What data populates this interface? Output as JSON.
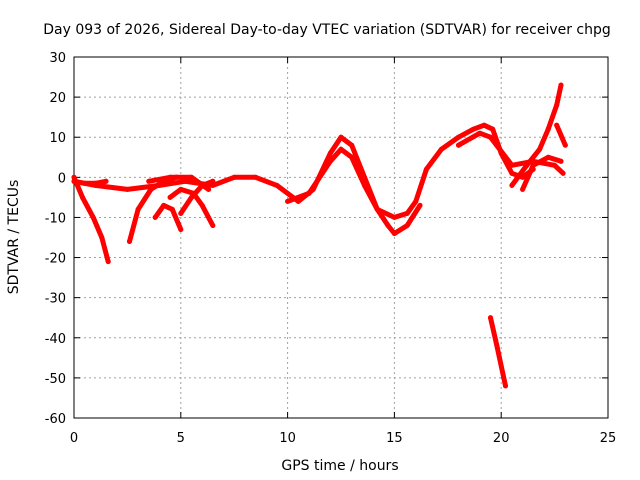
{
  "chart_data": {
    "type": "line",
    "title": "Day 093 of 2026, Sidereal Day-to-day VTEC variation (SDTVAR) for receiver chpg",
    "xlabel": "GPS time / hours",
    "ylabel": "SDTVAR / TECUs",
    "xlim": [
      0,
      25
    ],
    "ylim": [
      -60,
      30
    ],
    "xticks": [
      0,
      5,
      10,
      15,
      20,
      25
    ],
    "yticks": [
      -60,
      -50,
      -40,
      -30,
      -20,
      -10,
      0,
      10,
      20,
      30
    ],
    "xtick_labels": [
      "0",
      "5",
      "10",
      "15",
      "20",
      "25"
    ],
    "ytick_labels": [
      "-60",
      "-50",
      "-40",
      "-30",
      "-20",
      "-10",
      "0",
      "10",
      "20",
      "30"
    ],
    "grid": true,
    "legend": "none",
    "color": "#ff0000",
    "series": [
      {
        "name": "arc-main",
        "x": [
          0,
          1.0,
          2.5,
          4.0,
          5.2,
          6.5,
          7.5,
          8.5,
          9.5,
          10.5,
          11.2,
          12.0,
          12.5,
          13.0,
          13.6,
          14.2,
          15.0,
          15.6,
          16.0,
          16.5,
          17.2,
          18.0,
          18.7,
          19.2,
          19.6,
          20.0,
          20.5,
          21.0,
          21.5
        ],
        "y": [
          -1,
          -2,
          -3,
          -2,
          -1,
          -2,
          0,
          0,
          -2,
          -6,
          -3,
          6,
          10,
          8,
          0,
          -8,
          -10,
          -9,
          -6,
          2,
          7,
          10,
          12,
          13,
          12,
          6,
          1,
          0,
          2
        ]
      },
      {
        "name": "arc-main-lower",
        "x": [
          10.0,
          11.0,
          12.0,
          12.5,
          13.0,
          13.6,
          14.2,
          14.7,
          15.0,
          15.6,
          16.2
        ],
        "y": [
          -6,
          -4,
          4,
          7,
          5,
          -2,
          -8,
          -12,
          -14,
          -12,
          -7
        ]
      },
      {
        "name": "arc-1",
        "x": [
          0,
          0.4,
          0.9,
          1.3,
          1.6
        ],
        "y": [
          0,
          -5,
          -10,
          -15,
          -21
        ]
      },
      {
        "name": "arc-2",
        "x": [
          0,
          0.5,
          1.0,
          1.5
        ],
        "y": [
          -1,
          -1.5,
          -1.5,
          -1
        ]
      },
      {
        "name": "arc-3",
        "x": [
          2.6,
          3.0,
          3.6,
          4.2,
          4.8
        ],
        "y": [
          -16,
          -8,
          -3,
          -1,
          0
        ]
      },
      {
        "name": "arc-4",
        "x": [
          3.8,
          4.2,
          4.6,
          5.0
        ],
        "y": [
          -10,
          -7,
          -8,
          -13
        ]
      },
      {
        "name": "arc-5",
        "x": [
          4.5,
          5.0,
          5.6,
          6.0,
          6.5
        ],
        "y": [
          -5,
          -3,
          -4,
          -7,
          -12
        ]
      },
      {
        "name": "arc-6",
        "x": [
          5.0,
          5.5,
          6.0,
          6.5
        ],
        "y": [
          -9,
          -5,
          -2,
          -1
        ]
      },
      {
        "name": "arc-7",
        "x": [
          3.5,
          4.5,
          5.5,
          6.3
        ],
        "y": [
          -1,
          0,
          0,
          -3
        ]
      },
      {
        "name": "arc-8",
        "x": [
          18.0,
          19.0,
          19.5,
          20.5,
          21.5,
          22.5,
          22.9
        ],
        "y": [
          8,
          11,
          10,
          3,
          4,
          3,
          1
        ]
      },
      {
        "name": "arc-9",
        "x": [
          20.5,
          21.2,
          21.8,
          22.2,
          22.6,
          22.8
        ],
        "y": [
          -2,
          3,
          7,
          12,
          18,
          23
        ]
      },
      {
        "name": "arc-10",
        "x": [
          22.6,
          23.0
        ],
        "y": [
          13,
          8
        ]
      },
      {
        "name": "arc-11",
        "x": [
          21.0,
          21.5,
          22.2,
          22.8
        ],
        "y": [
          -3,
          3,
          5,
          4
        ]
      },
      {
        "name": "arc-12",
        "x": [
          19.5,
          19.8,
          20.2
        ],
        "y": [
          -35,
          -42,
          -52
        ]
      }
    ]
  }
}
